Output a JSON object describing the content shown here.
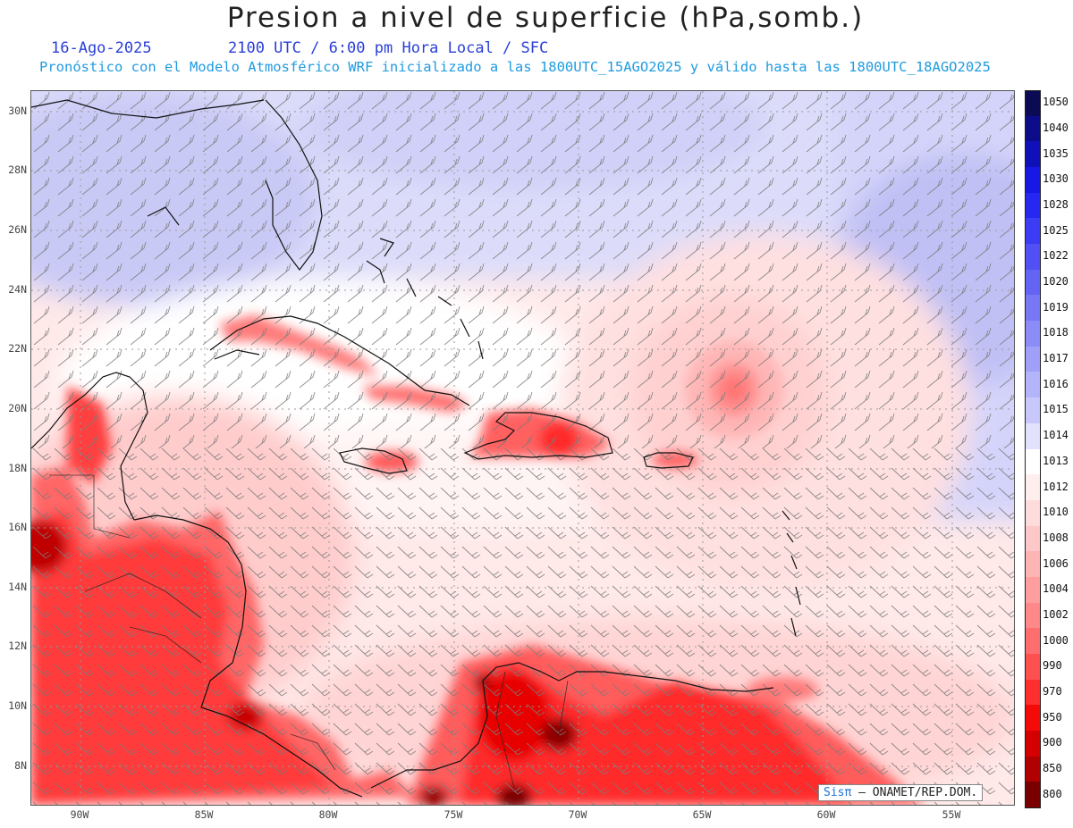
{
  "title": "Presion a nivel de superficie (hPa,somb.)",
  "date": "16-Ago-2025",
  "valid_time": "2100 UTC / 6:00 pm Hora Local / SFC",
  "forecast_info": "Pronóstico con el Modelo Atmosférico WRF inicializado a las 1800UTC_15AGO2025 y válido hasta las  1800UTC_18AGO2025",
  "lat_labels": [
    "30N",
    "28N",
    "26N",
    "24N",
    "22N",
    "20N",
    "18N",
    "16N",
    "14N",
    "12N",
    "10N",
    "8N"
  ],
  "lon_labels": [
    "90W",
    "85W",
    "80W",
    "75W",
    "70W",
    "65W",
    "60W",
    "55W"
  ],
  "colorbar": {
    "levels": [
      "1050",
      "1040",
      "1035",
      "1030",
      "1028",
      "1025",
      "1022",
      "1020",
      "1019",
      "1018",
      "1017",
      "1016",
      "1015",
      "1014",
      "1013",
      "1012",
      "1010",
      "1008",
      "1006",
      "1004",
      "1002",
      "1000",
      "990",
      "970",
      "950",
      "900",
      "850",
      "800"
    ],
    "colors": [
      "#0a0a55",
      "#0c0c8a",
      "#1010b8",
      "#1717e6",
      "#2727f2",
      "#3c3cf4",
      "#5050f4",
      "#6464f4",
      "#7878f6",
      "#8c8cf8",
      "#a0a0f8",
      "#b4b4fa",
      "#c8c8fc",
      "#e2e2fe",
      "#ffffff",
      "#ffeeee",
      "#ffdcdc",
      "#ffc8c8",
      "#ffb4b4",
      "#ff9e9e",
      "#ff8888",
      "#ff6e6e",
      "#ff5050",
      "#ff2e2e",
      "#f50a0a",
      "#d40000",
      "#b00000",
      "#7a0000"
    ]
  },
  "credit": {
    "logo": "Sisπ",
    "text": "– ONAMET/REP.DOM."
  }
}
